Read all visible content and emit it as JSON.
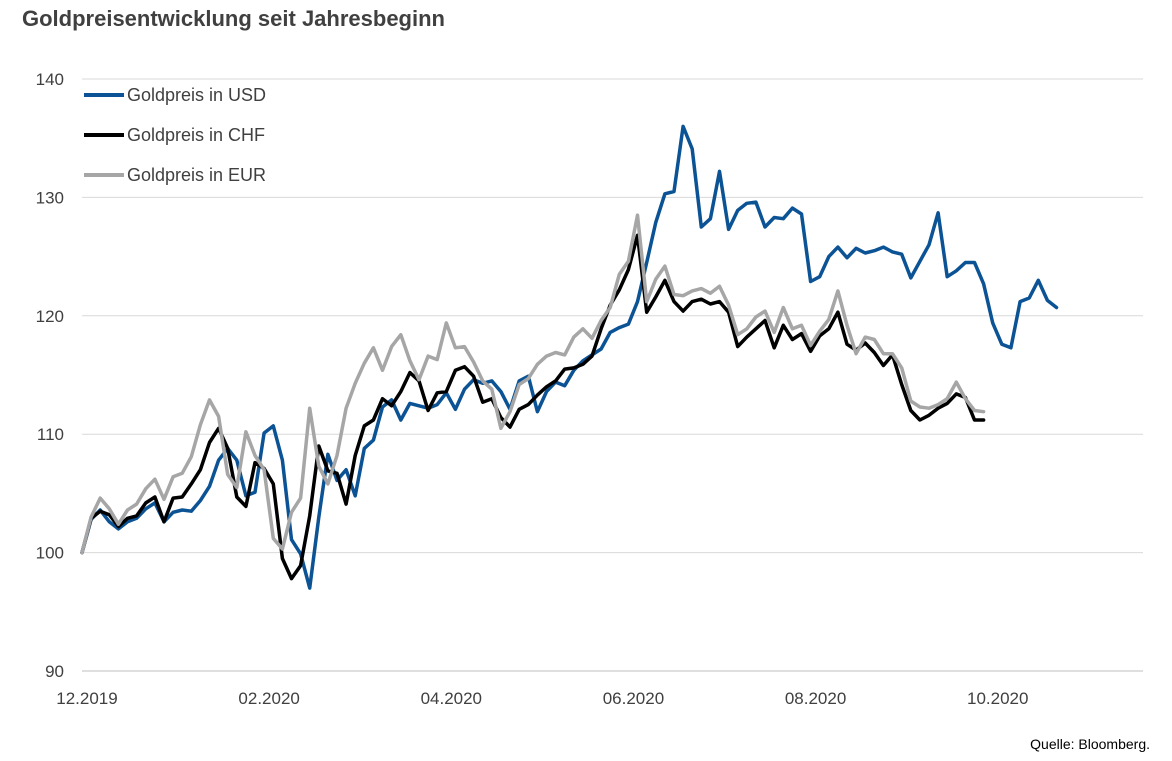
{
  "title": "Goldpreisentwicklung seit Jahresbeginn",
  "source": "Quelle: Bloomberg.",
  "colors": {
    "usd": "#0b5394",
    "chf": "#000000",
    "eur": "#a6a6a6",
    "grid": "#d9d9d9",
    "axis": "#bfbfbf"
  },
  "chart_data": {
    "type": "line",
    "ylim": [
      90,
      140
    ],
    "yticks": [
      90,
      100,
      110,
      120,
      130,
      140
    ],
    "xlim": [
      0,
      233
    ],
    "xticks": [
      {
        "x": 0,
        "label": "12.2019"
      },
      {
        "x": 40,
        "label": "02.2020"
      },
      {
        "x": 80,
        "label": "04.2020"
      },
      {
        "x": 120,
        "label": "06.2020"
      },
      {
        "x": 160,
        "label": "08.2020"
      },
      {
        "x": 200,
        "label": "10.2020"
      }
    ],
    "grid": true,
    "legend_position": "top-left",
    "series": [
      {
        "name": "Goldpreis in USD",
        "key": "usd",
        "points": [
          [
            0,
            100
          ],
          [
            2,
            102.8
          ],
          [
            4,
            103.6
          ],
          [
            6,
            102.6
          ],
          [
            8,
            102
          ],
          [
            10,
            102.6
          ],
          [
            12,
            102.9
          ],
          [
            14,
            103.7
          ],
          [
            16,
            104.2
          ],
          [
            18,
            102.6
          ],
          [
            20,
            103.4
          ],
          [
            22,
            103.6
          ],
          [
            24,
            103.5
          ],
          [
            26,
            104.4
          ],
          [
            28,
            105.6
          ],
          [
            30,
            107.8
          ],
          [
            32,
            108.8
          ],
          [
            34,
            107.8
          ],
          [
            36,
            104.8
          ],
          [
            38,
            105.1
          ],
          [
            40,
            110.1
          ],
          [
            42,
            110.7
          ],
          [
            44,
            107.8
          ],
          [
            46,
            101.1
          ],
          [
            48,
            99.9
          ],
          [
            50,
            97
          ],
          [
            52,
            103
          ],
          [
            54,
            108.3
          ],
          [
            56,
            106.1
          ],
          [
            58,
            107
          ],
          [
            60,
            104.8
          ],
          [
            62,
            108.8
          ],
          [
            64,
            109.5
          ],
          [
            66,
            112.3
          ],
          [
            68,
            112.9
          ],
          [
            70,
            111.2
          ],
          [
            72,
            112.6
          ],
          [
            74,
            112.4
          ],
          [
            76,
            112.2
          ],
          [
            78,
            112.5
          ],
          [
            80,
            113.5
          ],
          [
            82,
            112.1
          ],
          [
            84,
            113.8
          ],
          [
            86,
            114.6
          ],
          [
            88,
            114.3
          ],
          [
            90,
            114.5
          ],
          [
            92,
            113.6
          ],
          [
            94,
            112.1
          ],
          [
            96,
            114.5
          ],
          [
            98,
            114.9
          ],
          [
            100,
            111.9
          ],
          [
            102,
            113.6
          ],
          [
            104,
            114.4
          ],
          [
            106,
            114.1
          ],
          [
            108,
            115.4
          ],
          [
            110,
            116.2
          ],
          [
            112,
            116.7
          ],
          [
            114,
            117.2
          ],
          [
            116,
            118.6
          ],
          [
            118,
            119
          ],
          [
            120,
            119.3
          ],
          [
            122,
            121.2
          ],
          [
            124,
            124.5
          ],
          [
            126,
            127.9
          ],
          [
            128,
            130.3
          ],
          [
            130,
            130.5
          ],
          [
            132,
            136
          ],
          [
            134,
            134.1
          ],
          [
            136,
            127.5
          ],
          [
            138,
            128.2
          ],
          [
            140,
            132.2
          ],
          [
            142,
            127.3
          ],
          [
            144,
            128.9
          ],
          [
            146,
            129.5
          ],
          [
            148,
            129.6
          ],
          [
            150,
            127.5
          ],
          [
            152,
            128.3
          ],
          [
            154,
            128.2
          ],
          [
            156,
            129.1
          ],
          [
            158,
            128.6
          ],
          [
            160,
            122.9
          ],
          [
            162,
            123.3
          ],
          [
            164,
            125
          ],
          [
            166,
            125.8
          ],
          [
            168,
            124.9
          ],
          [
            170,
            125.7
          ],
          [
            172,
            125.3
          ],
          [
            174,
            125.5
          ],
          [
            176,
            125.8
          ],
          [
            178,
            125.4
          ],
          [
            180,
            125.2
          ],
          [
            182,
            123.2
          ],
          [
            184,
            124.6
          ],
          [
            186,
            126
          ],
          [
            188,
            128.7
          ],
          [
            190,
            123.3
          ],
          [
            192,
            123.8
          ],
          [
            194,
            124.5
          ],
          [
            196,
            124.5
          ],
          [
            198,
            122.7
          ],
          [
            200,
            119.4
          ],
          [
            202,
            117.6
          ],
          [
            204,
            117.3
          ],
          [
            206,
            121.2
          ],
          [
            208,
            121.5
          ],
          [
            210,
            123
          ],
          [
            212,
            121.3
          ],
          [
            214,
            120.7
          ]
        ]
      },
      {
        "name": "Goldpreis in CHF",
        "key": "chf",
        "points": [
          [
            0,
            100
          ],
          [
            2,
            102.9
          ],
          [
            4,
            103.5
          ],
          [
            6,
            103.2
          ],
          [
            8,
            102.2
          ],
          [
            10,
            102.9
          ],
          [
            12,
            103.1
          ],
          [
            14,
            104.2
          ],
          [
            16,
            104.7
          ],
          [
            18,
            102.6
          ],
          [
            20,
            104.6
          ],
          [
            22,
            104.7
          ],
          [
            24,
            105.8
          ],
          [
            26,
            107
          ],
          [
            28,
            109.3
          ],
          [
            30,
            110.5
          ],
          [
            32,
            108.8
          ],
          [
            34,
            104.7
          ],
          [
            36,
            103.9
          ],
          [
            38,
            107.6
          ],
          [
            40,
            107.1
          ],
          [
            42,
            105.8
          ],
          [
            44,
            99.5
          ],
          [
            46,
            97.8
          ],
          [
            48,
            98.9
          ],
          [
            50,
            103.1
          ],
          [
            52,
            109
          ],
          [
            54,
            106.9
          ],
          [
            56,
            106.7
          ],
          [
            58,
            104.1
          ],
          [
            60,
            108.2
          ],
          [
            62,
            110.7
          ],
          [
            64,
            111.2
          ],
          [
            66,
            113
          ],
          [
            68,
            112.4
          ],
          [
            70,
            113.6
          ],
          [
            72,
            115.2
          ],
          [
            74,
            114.5
          ],
          [
            76,
            112
          ],
          [
            78,
            113.5
          ],
          [
            80,
            113.6
          ],
          [
            82,
            115.4
          ],
          [
            84,
            115.7
          ],
          [
            86,
            114.9
          ],
          [
            88,
            112.7
          ],
          [
            90,
            113
          ],
          [
            92,
            111.4
          ],
          [
            94,
            110.6
          ],
          [
            96,
            112.1
          ],
          [
            98,
            112.5
          ],
          [
            100,
            113.3
          ],
          [
            102,
            114
          ],
          [
            104,
            114.5
          ],
          [
            106,
            115.5
          ],
          [
            108,
            115.6
          ],
          [
            110,
            115.9
          ],
          [
            112,
            116.6
          ],
          [
            114,
            118.9
          ],
          [
            116,
            120.9
          ],
          [
            118,
            122.2
          ],
          [
            120,
            123.9
          ],
          [
            122,
            126.8
          ],
          [
            124,
            120.3
          ],
          [
            126,
            121.6
          ],
          [
            128,
            123
          ],
          [
            130,
            121.2
          ],
          [
            132,
            120.4
          ],
          [
            134,
            121.2
          ],
          [
            136,
            121.4
          ],
          [
            138,
            121
          ],
          [
            140,
            121.2
          ],
          [
            142,
            120.3
          ],
          [
            144,
            117.4
          ],
          [
            146,
            118.2
          ],
          [
            148,
            118.9
          ],
          [
            150,
            119.6
          ],
          [
            152,
            117.3
          ],
          [
            154,
            119.2
          ],
          [
            156,
            118
          ],
          [
            158,
            118.5
          ],
          [
            160,
            117
          ],
          [
            162,
            118.3
          ],
          [
            164,
            118.9
          ],
          [
            166,
            120.3
          ],
          [
            168,
            117.6
          ],
          [
            170,
            117.1
          ],
          [
            172,
            117.7
          ],
          [
            174,
            116.9
          ],
          [
            176,
            115.8
          ],
          [
            178,
            116.7
          ],
          [
            180,
            114.2
          ],
          [
            182,
            112
          ],
          [
            184,
            111.2
          ],
          [
            186,
            111.6
          ],
          [
            188,
            112.2
          ],
          [
            190,
            112.6
          ],
          [
            192,
            113.4
          ],
          [
            194,
            113.1
          ],
          [
            196,
            111.2
          ],
          [
            198,
            111.2
          ]
        ]
      },
      {
        "name": "Goldpreis in EUR",
        "key": "eur",
        "points": [
          [
            0,
            100
          ],
          [
            2,
            103
          ],
          [
            4,
            104.6
          ],
          [
            6,
            103.7
          ],
          [
            8,
            102.4
          ],
          [
            10,
            103.6
          ],
          [
            12,
            104.1
          ],
          [
            14,
            105.4
          ],
          [
            16,
            106.2
          ],
          [
            18,
            104.5
          ],
          [
            20,
            106.4
          ],
          [
            22,
            106.7
          ],
          [
            24,
            108.1
          ],
          [
            26,
            110.8
          ],
          [
            28,
            112.9
          ],
          [
            30,
            111.5
          ],
          [
            32,
            106.6
          ],
          [
            34,
            105.5
          ],
          [
            36,
            110.2
          ],
          [
            38,
            108.2
          ],
          [
            40,
            107
          ],
          [
            42,
            101.2
          ],
          [
            44,
            100.3
          ],
          [
            46,
            103.4
          ],
          [
            48,
            104.6
          ],
          [
            50,
            112.2
          ],
          [
            52,
            107.3
          ],
          [
            54,
            105.8
          ],
          [
            56,
            108.2
          ],
          [
            58,
            112.2
          ],
          [
            60,
            114.3
          ],
          [
            62,
            116
          ],
          [
            64,
            117.3
          ],
          [
            66,
            115.4
          ],
          [
            68,
            117.4
          ],
          [
            70,
            118.4
          ],
          [
            72,
            116.2
          ],
          [
            74,
            114.6
          ],
          [
            76,
            116.6
          ],
          [
            78,
            116.3
          ],
          [
            80,
            119.4
          ],
          [
            82,
            117.3
          ],
          [
            84,
            117.4
          ],
          [
            86,
            116.1
          ],
          [
            88,
            114.5
          ],
          [
            90,
            113.8
          ],
          [
            92,
            110.5
          ],
          [
            94,
            111.9
          ],
          [
            96,
            114.2
          ],
          [
            98,
            114.7
          ],
          [
            100,
            115.9
          ],
          [
            102,
            116.6
          ],
          [
            104,
            116.9
          ],
          [
            106,
            116.7
          ],
          [
            108,
            118.2
          ],
          [
            110,
            118.9
          ],
          [
            112,
            118.1
          ],
          [
            114,
            119.6
          ],
          [
            116,
            120.7
          ],
          [
            118,
            123.5
          ],
          [
            120,
            124.6
          ],
          [
            122,
            128.5
          ],
          [
            124,
            121.2
          ],
          [
            126,
            123.1
          ],
          [
            128,
            124.2
          ],
          [
            130,
            121.8
          ],
          [
            132,
            121.7
          ],
          [
            134,
            122.1
          ],
          [
            136,
            122.3
          ],
          [
            138,
            121.9
          ],
          [
            140,
            122.5
          ],
          [
            142,
            120.9
          ],
          [
            144,
            118.4
          ],
          [
            146,
            118.9
          ],
          [
            148,
            119.9
          ],
          [
            150,
            120.4
          ],
          [
            152,
            118.6
          ],
          [
            154,
            120.7
          ],
          [
            156,
            118.9
          ],
          [
            158,
            119.2
          ],
          [
            160,
            117.5
          ],
          [
            162,
            118.7
          ],
          [
            164,
            119.7
          ],
          [
            166,
            122.1
          ],
          [
            168,
            119.2
          ],
          [
            170,
            116.8
          ],
          [
            172,
            118.2
          ],
          [
            174,
            118
          ],
          [
            176,
            116.8
          ],
          [
            178,
            116.8
          ],
          [
            180,
            115.6
          ],
          [
            182,
            112.8
          ],
          [
            184,
            112.3
          ],
          [
            186,
            112.2
          ],
          [
            188,
            112.5
          ],
          [
            190,
            113
          ],
          [
            192,
            114.4
          ],
          [
            194,
            113
          ],
          [
            196,
            112
          ],
          [
            198,
            111.9
          ]
        ]
      }
    ]
  }
}
